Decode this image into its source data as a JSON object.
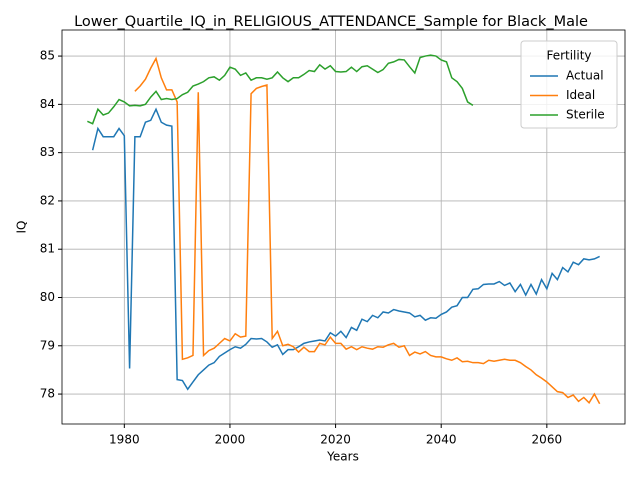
{
  "chart_data": {
    "type": "line",
    "title": "Lower_Quartile_IQ_in_RELIGIOUS_ATTENDANCE_Sample for Black_Male",
    "x_label": "Years",
    "y_label": "IQ",
    "legend_title": "Fertility",
    "legend_loc": "upper right",
    "grid": true,
    "xlim": [
      1968.2,
      2074.8
    ],
    "ylim": [
      77.38,
      85.54
    ],
    "xticks": [
      1980,
      2000,
      2020,
      2040,
      2060
    ],
    "yticks": [
      78,
      79,
      80,
      81,
      82,
      83,
      84,
      85
    ],
    "x": [
      1973,
      1974,
      1975,
      1976,
      1977,
      1978,
      1979,
      1980,
      1981,
      1982,
      1983,
      1984,
      1985,
      1986,
      1987,
      1988,
      1989,
      1990,
      1991,
      1992,
      1993,
      1994,
      1995,
      1996,
      1997,
      1998,
      1999,
      2000,
      2001,
      2002,
      2003,
      2004,
      2005,
      2006,
      2007,
      2008,
      2009,
      2010,
      2011,
      2012,
      2013,
      2014,
      2015,
      2016,
      2017,
      2018,
      2019,
      2020,
      2021,
      2022,
      2023,
      2024,
      2025,
      2026,
      2027,
      2028,
      2029,
      2030,
      2031,
      2032,
      2033,
      2034,
      2035,
      2036,
      2037,
      2038,
      2039,
      2040,
      2041,
      2042,
      2043,
      2044,
      2045,
      2046,
      2047,
      2048,
      2049,
      2050,
      2051,
      2052,
      2053,
      2054,
      2055,
      2056,
      2057,
      2058,
      2059,
      2060,
      2061,
      2062,
      2063,
      2064,
      2065,
      2066,
      2067,
      2068,
      2069,
      2070
    ],
    "series": [
      {
        "name": "Actual",
        "color": "#1f77b4",
        "values": [
          null,
          83.05,
          83.5,
          83.33,
          83.33,
          83.33,
          83.5,
          83.35,
          78.53,
          83.33,
          83.33,
          83.63,
          83.67,
          83.9,
          83.63,
          83.57,
          83.55,
          78.3,
          78.28,
          78.1,
          78.25,
          78.4,
          78.5,
          78.6,
          78.65,
          78.78,
          78.85,
          78.92,
          78.98,
          78.95,
          79.03,
          79.15,
          79.14,
          79.15,
          79.08,
          78.97,
          79.02,
          78.82,
          78.92,
          78.92,
          78.98,
          79.05,
          79.08,
          79.1,
          79.12,
          79.1,
          79.27,
          79.2,
          79.3,
          79.17,
          79.38,
          79.32,
          79.55,
          79.5,
          79.63,
          79.58,
          79.7,
          79.68,
          79.75,
          79.72,
          79.7,
          79.68,
          79.6,
          79.63,
          79.53,
          79.58,
          79.57,
          79.65,
          79.7,
          79.8,
          79.83,
          80.0,
          80.0,
          80.17,
          80.18,
          80.27,
          80.28,
          80.28,
          80.33,
          80.25,
          80.3,
          80.12,
          80.27,
          80.05,
          80.27,
          80.07,
          80.37,
          80.18,
          80.5,
          80.37,
          80.62,
          80.53,
          80.73,
          80.68,
          80.8,
          80.78,
          80.8,
          80.85
        ]
      },
      {
        "name": "Ideal",
        "color": "#ff7f0e",
        "values": [
          null,
          null,
          null,
          null,
          null,
          null,
          null,
          null,
          null,
          84.27,
          84.38,
          84.52,
          84.75,
          84.95,
          84.55,
          84.3,
          84.3,
          84.05,
          78.72,
          78.75,
          78.8,
          84.25,
          78.8,
          78.9,
          78.95,
          79.05,
          79.15,
          79.1,
          79.25,
          79.18,
          79.2,
          84.22,
          84.33,
          84.37,
          84.4,
          79.15,
          79.3,
          79.0,
          79.03,
          78.98,
          78.87,
          78.97,
          78.88,
          78.88,
          79.05,
          79.02,
          79.18,
          79.05,
          79.05,
          78.93,
          78.98,
          78.92,
          78.98,
          78.95,
          78.93,
          78.98,
          78.97,
          79.02,
          79.05,
          78.97,
          79.0,
          78.8,
          78.87,
          78.83,
          78.88,
          78.8,
          78.77,
          78.77,
          78.73,
          78.7,
          78.75,
          78.67,
          78.68,
          78.65,
          78.65,
          78.63,
          78.7,
          78.68,
          78.7,
          78.72,
          78.7,
          78.7,
          78.65,
          78.57,
          78.5,
          78.4,
          78.33,
          78.25,
          78.15,
          78.05,
          78.03,
          77.93,
          77.98,
          77.85,
          77.93,
          77.82,
          78.0,
          77.8
        ]
      },
      {
        "name": "Sterile",
        "color": "#2ca02c",
        "values": [
          83.65,
          83.6,
          83.9,
          83.78,
          83.82,
          83.95,
          84.1,
          84.05,
          83.97,
          83.98,
          83.97,
          84.0,
          84.15,
          84.27,
          84.1,
          84.12,
          84.1,
          84.12,
          84.2,
          84.25,
          84.38,
          84.42,
          84.47,
          84.55,
          84.57,
          84.5,
          84.6,
          84.77,
          84.73,
          84.6,
          84.65,
          84.5,
          84.55,
          84.55,
          84.52,
          84.55,
          84.67,
          84.55,
          84.47,
          84.55,
          84.55,
          84.62,
          84.7,
          84.68,
          84.82,
          84.73,
          84.8,
          84.68,
          84.67,
          84.68,
          84.77,
          84.68,
          84.78,
          84.8,
          84.73,
          84.66,
          84.72,
          84.85,
          84.88,
          84.93,
          84.92,
          84.78,
          84.65,
          84.97,
          85.0,
          85.02,
          85.0,
          84.92,
          84.88,
          84.55,
          84.47,
          84.33,
          84.05,
          83.98,
          null,
          null,
          null,
          null,
          null,
          null,
          null,
          null,
          null,
          null,
          null,
          null,
          null,
          null,
          null,
          null,
          null,
          null,
          null,
          null,
          null,
          null,
          null,
          null
        ]
      }
    ]
  }
}
